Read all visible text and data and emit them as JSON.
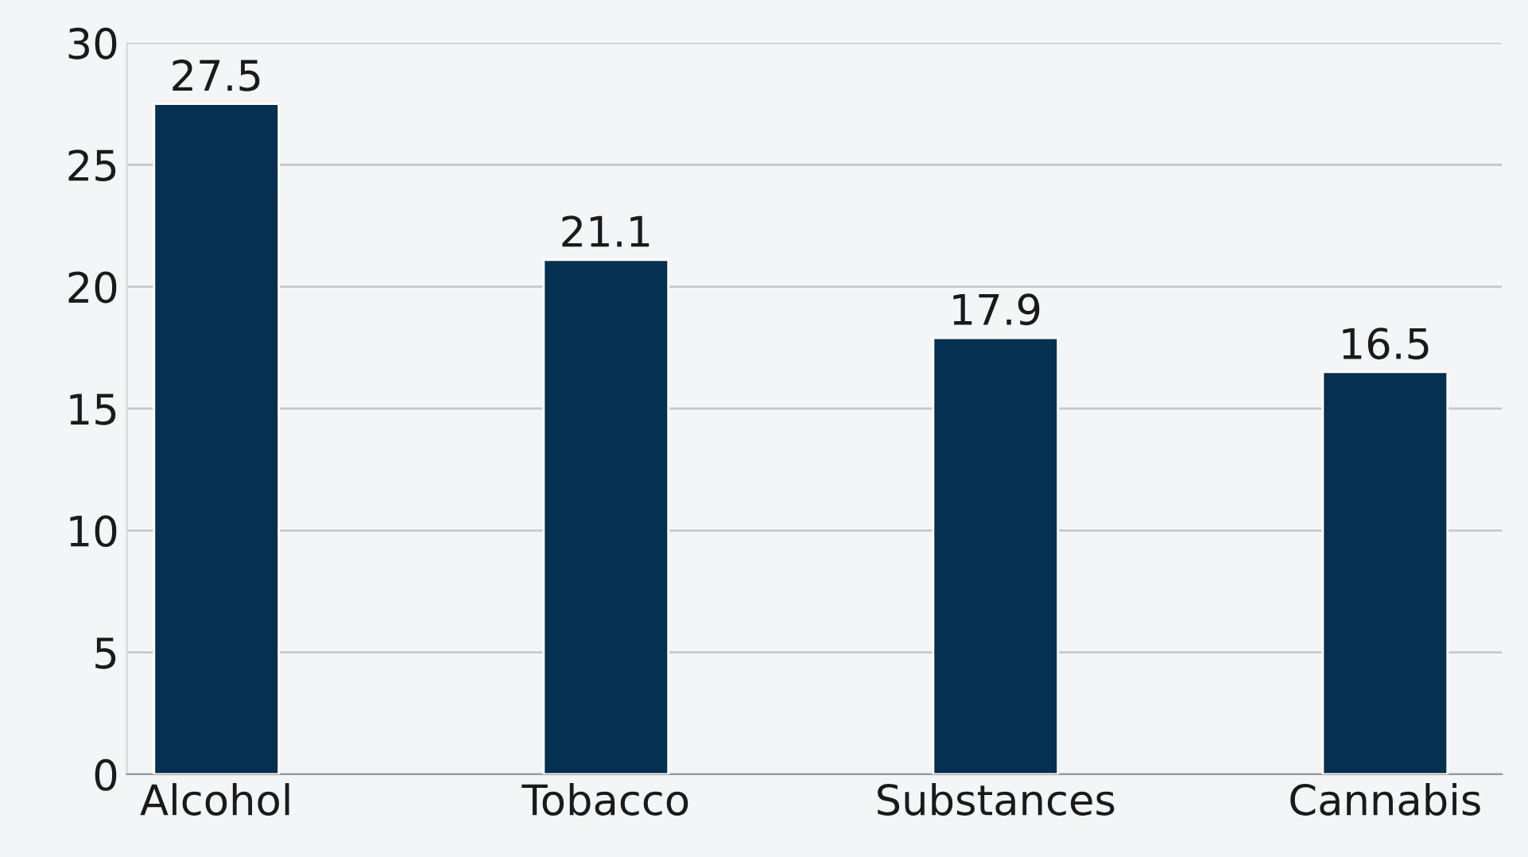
{
  "chart_data": {
    "type": "bar",
    "categories": [
      "Alcohol",
      "Tobacco",
      "Substances",
      "Cannabis"
    ],
    "values": [
      27.5,
      21.1,
      17.9,
      16.5
    ],
    "color": "#06304f",
    "ylim": [
      0,
      30
    ],
    "yticks": [
      0,
      5,
      10,
      15,
      20,
      25,
      30
    ],
    "grid": "y",
    "data_labels": true
  }
}
